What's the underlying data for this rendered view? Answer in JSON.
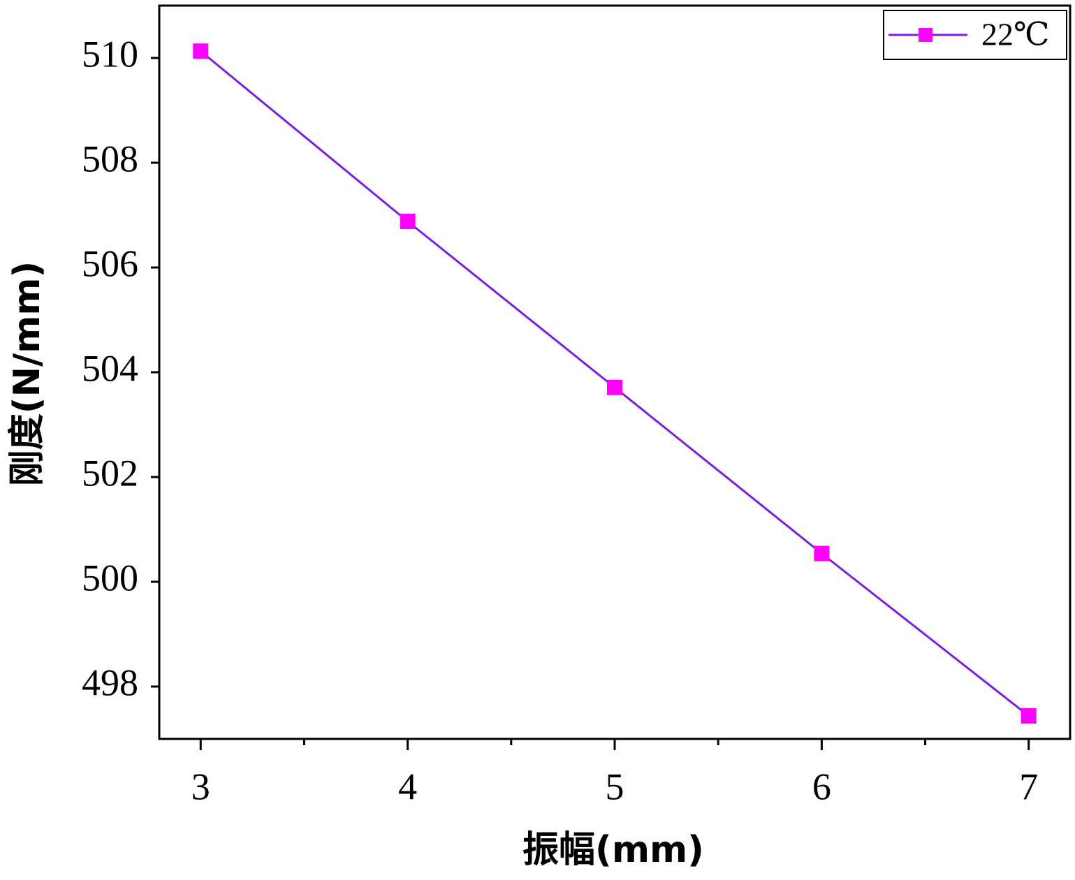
{
  "chart_data": {
    "type": "line",
    "x_label": "振幅(mm)",
    "y_label": "刚度(N/mm)",
    "x": [
      3,
      4,
      5,
      6,
      7
    ],
    "series": [
      {
        "name": "22℃",
        "line_color": "#7a1fe0",
        "color": "#ff00ff",
        "marker": "square",
        "values": [
          510.13,
          506.88,
          503.71,
          500.54,
          497.44
        ]
      }
    ],
    "xlim": [
      2.8,
      7.2
    ],
    "xticks": [
      3,
      4,
      5,
      6,
      7
    ],
    "xminorticks": [
      3.5,
      4.5,
      5.5,
      6.5
    ],
    "ylim": [
      497,
      511
    ],
    "yticks": [
      498,
      500,
      502,
      504,
      506,
      508,
      510
    ],
    "grid": false,
    "legend": "upper right"
  }
}
